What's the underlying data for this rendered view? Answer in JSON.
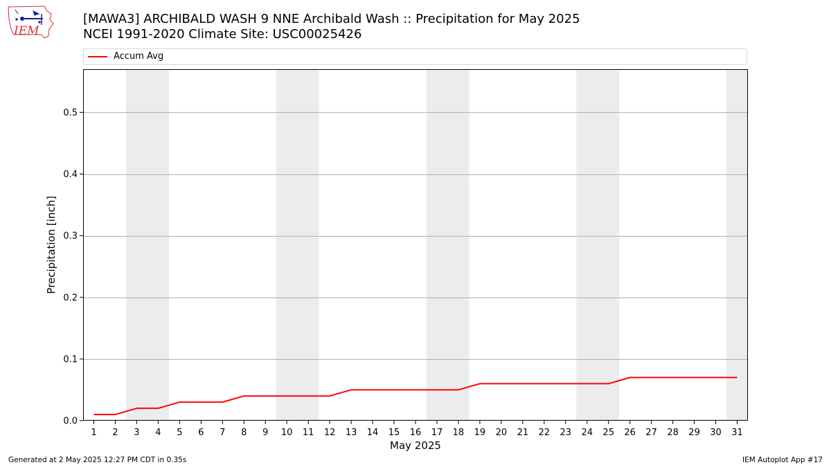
{
  "logo": {
    "text": "IEM"
  },
  "header": {
    "title_line1": "[MAWA3] ARCHIBALD WASH 9 NNE Archibald Wash :: Precipitation for May 2025",
    "title_line2": "NCEI 1991-2020 Climate Site: USC00025426"
  },
  "legend": {
    "label": "Accum Avg"
  },
  "footer": {
    "left": "Generated at 2 May 2025 12:27 PM CDT in 0.35s",
    "right": "IEM Autoplot App #17"
  },
  "colors": {
    "line": "#ff0000",
    "weekend_band": "#ececec",
    "grid": "#b0b0b0"
  },
  "chart_data": {
    "type": "line",
    "title": "[MAWA3] ARCHIBALD WASH 9 NNE Archibald Wash :: Precipitation for May 2025",
    "subtitle": "NCEI 1991-2020 Climate Site: USC00025426",
    "xlabel": "May 2025",
    "ylabel": "Precipitation [inch]",
    "categories": [
      "1",
      "2",
      "3",
      "4",
      "5",
      "6",
      "7",
      "8",
      "9",
      "10",
      "11",
      "12",
      "13",
      "14",
      "15",
      "16",
      "17",
      "18",
      "19",
      "20",
      "21",
      "22",
      "23",
      "24",
      "25",
      "26",
      "27",
      "28",
      "29",
      "30",
      "31"
    ],
    "xlim": [
      0.5,
      31.5
    ],
    "ylim": [
      0,
      0.57
    ],
    "yticks": [
      0.0,
      0.1,
      0.2,
      0.3,
      0.4,
      0.5
    ],
    "ytick_labels": [
      "0.0",
      "0.1",
      "0.2",
      "0.3",
      "0.4",
      "0.5"
    ],
    "grid": "horizontal",
    "legend_position": "top",
    "weekend_bands": [
      [
        3,
        4
      ],
      [
        10,
        11
      ],
      [
        17,
        18
      ],
      [
        24,
        25
      ],
      [
        31,
        31
      ]
    ],
    "series": [
      {
        "name": "Accum Avg",
        "x": [
          1,
          2,
          3,
          4,
          5,
          6,
          7,
          8,
          9,
          10,
          11,
          12,
          13,
          14,
          15,
          16,
          17,
          18,
          19,
          20,
          21,
          22,
          23,
          24,
          25,
          26,
          27,
          28,
          29,
          30,
          31
        ],
        "values": [
          0.01,
          0.01,
          0.02,
          0.02,
          0.03,
          0.03,
          0.03,
          0.04,
          0.04,
          0.04,
          0.04,
          0.04,
          0.05,
          0.05,
          0.05,
          0.05,
          0.05,
          0.05,
          0.06,
          0.06,
          0.06,
          0.06,
          0.06,
          0.06,
          0.06,
          0.07,
          0.07,
          0.07,
          0.07,
          0.07,
          0.07
        ]
      }
    ]
  }
}
